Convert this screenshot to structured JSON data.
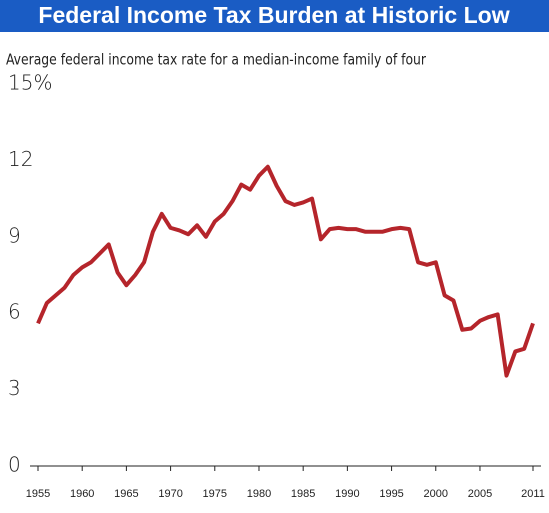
{
  "chart_data": {
    "type": "line",
    "title": "Federal Income Tax Burden at Historic Low",
    "subtitle": "Average federal income tax rate for a median-income family of four",
    "x": [
      1955,
      1956,
      1957,
      1958,
      1959,
      1960,
      1961,
      1962,
      1963,
      1964,
      1965,
      1966,
      1967,
      1968,
      1969,
      1970,
      1971,
      1972,
      1973,
      1974,
      1975,
      1976,
      1977,
      1978,
      1979,
      1980,
      1981,
      1982,
      1983,
      1984,
      1985,
      1986,
      1987,
      1988,
      1989,
      1990,
      1991,
      1992,
      1993,
      1994,
      1995,
      1996,
      1997,
      1998,
      1999,
      2000,
      2001,
      2002,
      2003,
      2004,
      2005,
      2006,
      2007,
      2008,
      2009,
      2010,
      2011
    ],
    "series": [
      {
        "color": "#b5252b",
        "values": [
          5.6,
          6.4,
          6.7,
          7.0,
          7.5,
          7.8,
          8.0,
          8.35,
          8.7,
          7.6,
          7.1,
          7.5,
          8.0,
          9.2,
          9.9,
          9.35,
          9.25,
          9.1,
          9.45,
          9.0,
          9.6,
          9.9,
          10.4,
          11.05,
          10.85,
          11.4,
          11.75,
          11.0,
          10.4,
          10.25,
          10.35,
          10.5,
          8.9,
          9.3,
          9.35,
          9.3,
          9.3,
          9.2,
          9.2,
          9.2,
          9.3,
          9.35,
          9.3,
          8.0,
          7.9,
          8.0,
          6.7,
          6.5,
          5.35,
          5.4,
          5.7,
          5.85,
          5.95,
          3.55,
          4.5,
          4.6,
          5.6
        ]
      }
    ],
    "xlim": [
      1955,
      2011
    ],
    "xticks": [
      1955,
      1960,
      1965,
      1970,
      1975,
      1980,
      1985,
      1990,
      1995,
      2000,
      2005,
      2011
    ],
    "ylim": [
      0,
      15
    ],
    "yticks": [
      0,
      3,
      6,
      9,
      12,
      {
        "value": 15,
        "label": "15%"
      }
    ],
    "title_color": "#1a5cc4"
  }
}
